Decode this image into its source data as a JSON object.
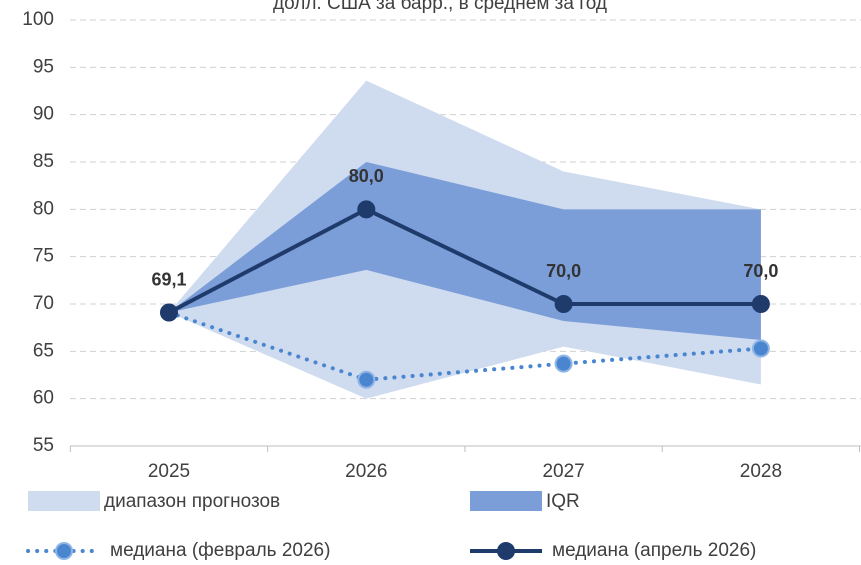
{
  "chart_data": {
    "type": "line",
    "title": "долл. США за барр., в среднем за год",
    "categories": [
      "2025",
      "2026",
      "2027",
      "2028"
    ],
    "ylim": [
      55,
      100
    ],
    "yticks": [
      55,
      60,
      65,
      70,
      75,
      80,
      85,
      90,
      95,
      100
    ],
    "grid": true,
    "bands": [
      {
        "name": "диапазон прогнозов",
        "color": "#cfdbef",
        "low": [
          69.1,
          60,
          65.5,
          61.5
        ],
        "high": [
          69.1,
          93.6,
          84,
          80
        ]
      },
      {
        "name": "IQR",
        "color": "#7b9ed8",
        "low": [
          69.1,
          73.6,
          68.2,
          66.2
        ],
        "high": [
          69.1,
          85,
          80,
          80
        ]
      }
    ],
    "series": [
      {
        "name": "медиана (февраль 2026)",
        "color": "#4a86cf",
        "dotted": true,
        "values": [
          69.1,
          62,
          63.7,
          65.3
        ]
      },
      {
        "name": "медиана (апрель 2026)",
        "color": "#1f3b6b",
        "dotted": false,
        "values": [
          69.1,
          80,
          70,
          70
        ],
        "value_labels": [
          "69,1",
          "80,0",
          "70,0",
          "70,0"
        ]
      }
    ]
  }
}
